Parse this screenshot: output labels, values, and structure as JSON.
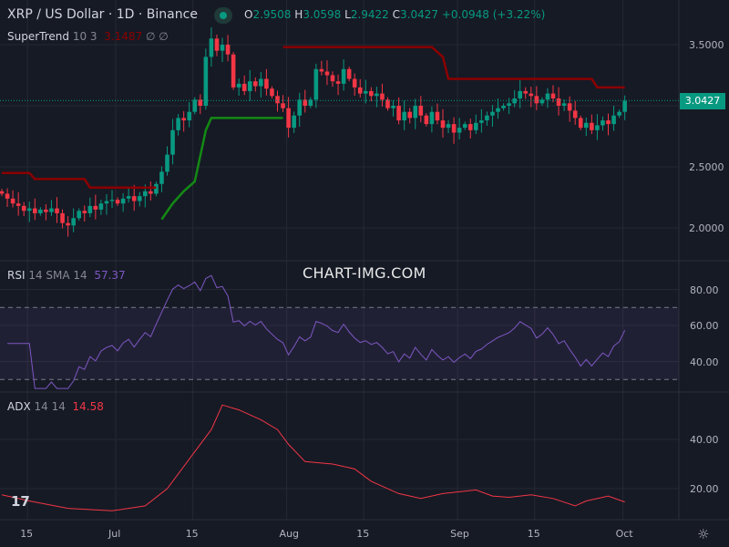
{
  "header": {
    "symbol": "XRP / US Dollar · 1D · Binance",
    "o_label": "O",
    "o": "2.9508",
    "h_label": "H",
    "h": "3.0598",
    "l_label": "L",
    "l": "2.9422",
    "c_label": "C",
    "c": "3.0427",
    "change": "+0.0948 (+3.22%)"
  },
  "supertrend": {
    "name": "SuperTrend",
    "params": "10 3",
    "value": "3.1487",
    "empty1": "∅",
    "empty2": "∅"
  },
  "rsi": {
    "name": "RSI",
    "params": "14 SMA 14",
    "value": "57.37",
    "ticks": [
      "80.00",
      "60.00",
      "40.00"
    ]
  },
  "adx": {
    "name": "ADX",
    "params": "14 14",
    "value": "14.58",
    "ticks": [
      "40.00",
      "20.00"
    ]
  },
  "watermark": "CHART-IMG.COM",
  "last_price": "3.0427",
  "colors": {
    "up": "#089981",
    "down": "#f23645",
    "st_up": "#138a13",
    "st_down": "#8b0000",
    "rsi": "#7e57c2",
    "adx": "#f23645"
  },
  "chart_data": {
    "type": "candlestick",
    "title": "XRP / US Dollar · 1D · Binance",
    "price_ticks": [
      "3.5000",
      "3.0000",
      "2.5000",
      "2.0000"
    ],
    "time_ticks": [
      {
        "label": "15",
        "day": 4
      },
      {
        "label": "Jul",
        "day": 20
      },
      {
        "label": "15",
        "day": 34
      },
      {
        "label": "Aug",
        "day": 51
      },
      {
        "label": "15",
        "day": 65
      },
      {
        "label": "Sep",
        "day": 82
      },
      {
        "label": "15",
        "day": 96
      },
      {
        "label": "Oct",
        "day": 112
      }
    ],
    "closes": [
      2.28,
      2.24,
      2.2,
      2.18,
      2.14,
      2.16,
      2.12,
      2.15,
      2.13,
      2.16,
      2.12,
      2.04,
      2.02,
      2.08,
      2.14,
      2.12,
      2.18,
      2.15,
      2.2,
      2.22,
      2.23,
      2.2,
      2.24,
      2.26,
      2.22,
      2.26,
      2.3,
      2.28,
      2.36,
      2.46,
      2.6,
      2.8,
      2.9,
      2.88,
      2.95,
      3.05,
      3.0,
      3.4,
      3.55,
      3.45,
      3.5,
      3.42,
      3.15,
      3.18,
      3.12,
      3.2,
      3.16,
      3.22,
      3.14,
      3.08,
      3.02,
      2.98,
      2.82,
      2.92,
      3.05,
      3.0,
      3.05,
      3.3,
      3.28,
      3.25,
      3.2,
      3.18,
      3.3,
      3.22,
      3.15,
      3.1,
      3.12,
      3.08,
      3.1,
      3.05,
      2.98,
      3.0,
      2.88,
      2.95,
      2.9,
      3.0,
      2.92,
      2.85,
      2.95,
      2.88,
      2.82,
      2.85,
      2.78,
      2.82,
      2.85,
      2.8,
      2.86,
      2.88,
      2.92,
      2.95,
      2.98,
      3.0,
      3.02,
      3.06,
      3.12,
      3.1,
      3.08,
      3.02,
      3.05,
      3.1,
      3.06,
      3.0,
      3.02,
      2.96,
      2.9,
      2.82,
      2.86,
      2.8,
      2.84,
      2.88,
      2.85,
      2.92,
      2.95,
      3.04
    ],
    "supertrend": [
      {
        "trend": "down",
        "points": [
          [
            0,
            2.45
          ],
          [
            5,
            2.45
          ],
          [
            6,
            2.4
          ],
          [
            15,
            2.4
          ],
          [
            16,
            2.33
          ],
          [
            28,
            2.33
          ]
        ]
      },
      {
        "trend": "up",
        "points": [
          [
            29,
            2.07
          ],
          [
            31,
            2.2
          ],
          [
            33,
            2.3
          ],
          [
            35,
            2.38
          ],
          [
            37,
            2.8
          ],
          [
            38,
            2.9
          ],
          [
            51,
            2.9
          ]
        ]
      },
      {
        "trend": "down",
        "points": [
          [
            51,
            3.48
          ],
          [
            78,
            3.48
          ],
          [
            80,
            3.4
          ],
          [
            81,
            3.22
          ],
          [
            107,
            3.22
          ],
          [
            108,
            3.15
          ],
          [
            113,
            3.15
          ]
        ]
      }
    ],
    "adx": [
      [
        0,
        17.5
      ],
      [
        5,
        15
      ],
      [
        12,
        12
      ],
      [
        20,
        11
      ],
      [
        26,
        13
      ],
      [
        30,
        20
      ],
      [
        34,
        32
      ],
      [
        38,
        44
      ],
      [
        40,
        54
      ],
      [
        43,
        52
      ],
      [
        47,
        48
      ],
      [
        50,
        44
      ],
      [
        52,
        38
      ],
      [
        55,
        31
      ],
      [
        60,
        30
      ],
      [
        64,
        28
      ],
      [
        67,
        23
      ],
      [
        72,
        18
      ],
      [
        76,
        16
      ],
      [
        80,
        18
      ],
      [
        86,
        19.5
      ],
      [
        89,
        17
      ],
      [
        92,
        16.5
      ],
      [
        96,
        17.5
      ],
      [
        100,
        16
      ],
      [
        104,
        13
      ],
      [
        106,
        15
      ],
      [
        110,
        17
      ],
      [
        113,
        14.58
      ]
    ]
  }
}
